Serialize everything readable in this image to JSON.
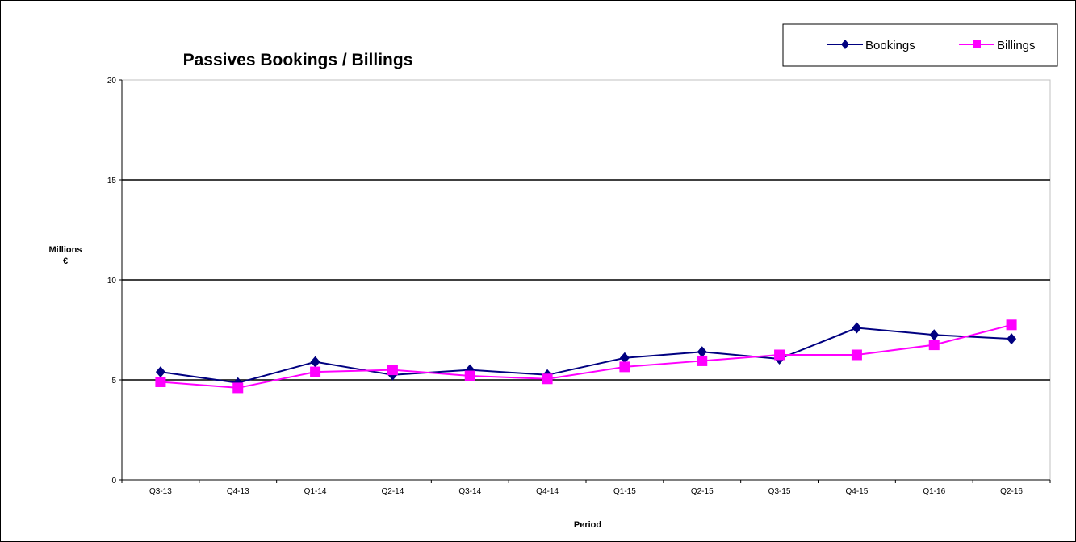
{
  "chart_data": {
    "type": "line",
    "title": "Passives Bookings / Billings",
    "xlabel": "Period",
    "ylabel": [
      "Millions",
      "€"
    ],
    "categories": [
      "Q3-13",
      "Q4-13",
      "Q1-14",
      "Q2-14",
      "Q3-14",
      "Q4-14",
      "Q1-15",
      "Q2-15",
      "Q3-15",
      "Q4-15",
      "Q1-16",
      "Q2-16"
    ],
    "ylim": [
      0,
      20
    ],
    "yticks": [
      0,
      5,
      10,
      15,
      20
    ],
    "grid": "horizontal",
    "legend_position": "top-right",
    "series": [
      {
        "name": "Bookings",
        "marker": "diamond",
        "color": "#000080",
        "values": [
          5.4,
          4.85,
          5.9,
          5.25,
          5.5,
          5.25,
          6.1,
          6.4,
          6.05,
          7.6,
          7.25,
          7.05
        ]
      },
      {
        "name": "Billings",
        "marker": "square",
        "color": "#FF00FF",
        "values": [
          4.9,
          4.6,
          5.4,
          5.5,
          5.2,
          5.05,
          5.65,
          5.95,
          6.25,
          6.25,
          6.75,
          7.75
        ]
      }
    ]
  }
}
